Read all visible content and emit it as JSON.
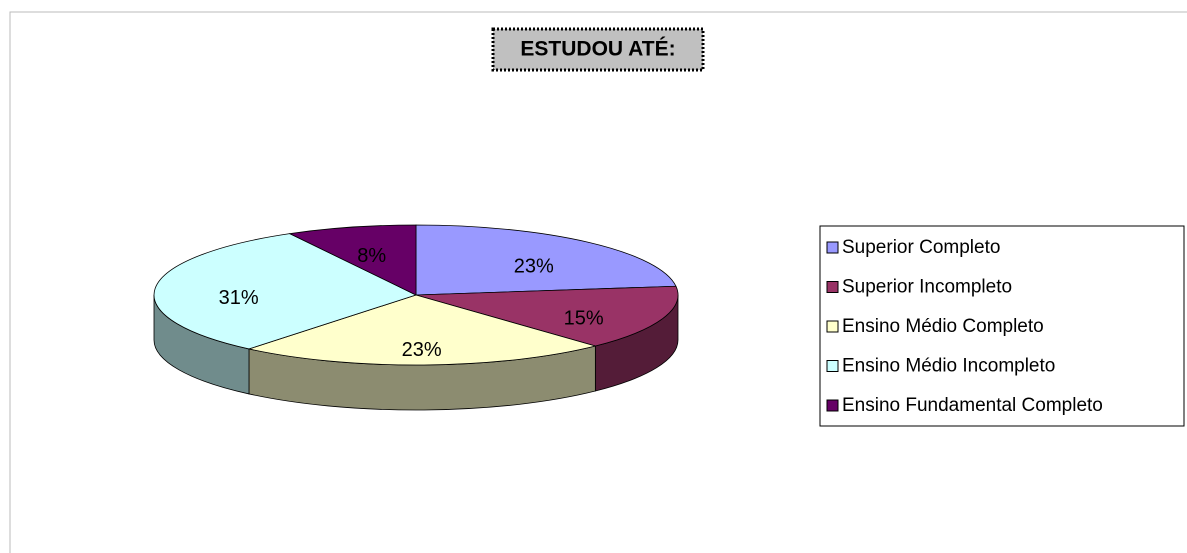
{
  "chart_data": {
    "type": "pie",
    "title": "ESTUDOU ATÉ:",
    "categories": [
      "Superior Completo",
      "Superior Incompleto",
      "Ensino Médio Completo",
      "Ensino Médio Incompleto",
      "Ensino Fundamental Completo"
    ],
    "values": [
      23,
      15,
      23,
      31,
      8
    ],
    "value_labels": [
      "23%",
      "15%",
      "23%",
      "31%",
      "8%"
    ],
    "colors": [
      "#9999ff",
      "#993366",
      "#ffffcc",
      "#ccffff",
      "#660066"
    ],
    "legend": "right"
  }
}
